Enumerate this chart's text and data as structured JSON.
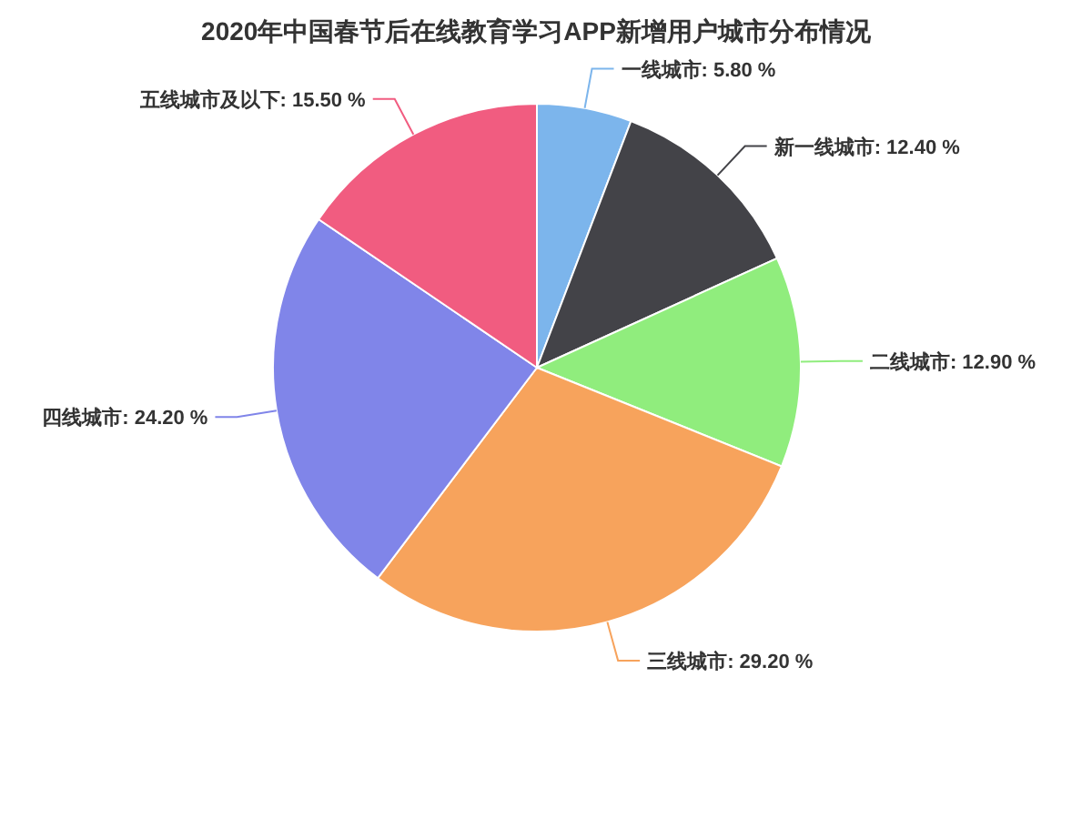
{
  "chart_data": {
    "type": "pie",
    "title": "2020年中国春节后在线教育学习APP新增用户城市分布情况",
    "categories": [
      "一线城市",
      "新一线城市",
      "二线城市",
      "三线城市",
      "四线城市",
      "五线城市及以下"
    ],
    "values": [
      5.8,
      12.4,
      12.9,
      29.2,
      24.2,
      15.5
    ],
    "value_labels": [
      "5.80 %",
      "12.40 %",
      "12.90 %",
      "29.20 %",
      "24.20 %",
      "15.50 %"
    ],
    "colors": [
      "#7cb5ec",
      "#434348",
      "#90ed7d",
      "#f7a35c",
      "#8085e9",
      "#f15c80"
    ]
  }
}
